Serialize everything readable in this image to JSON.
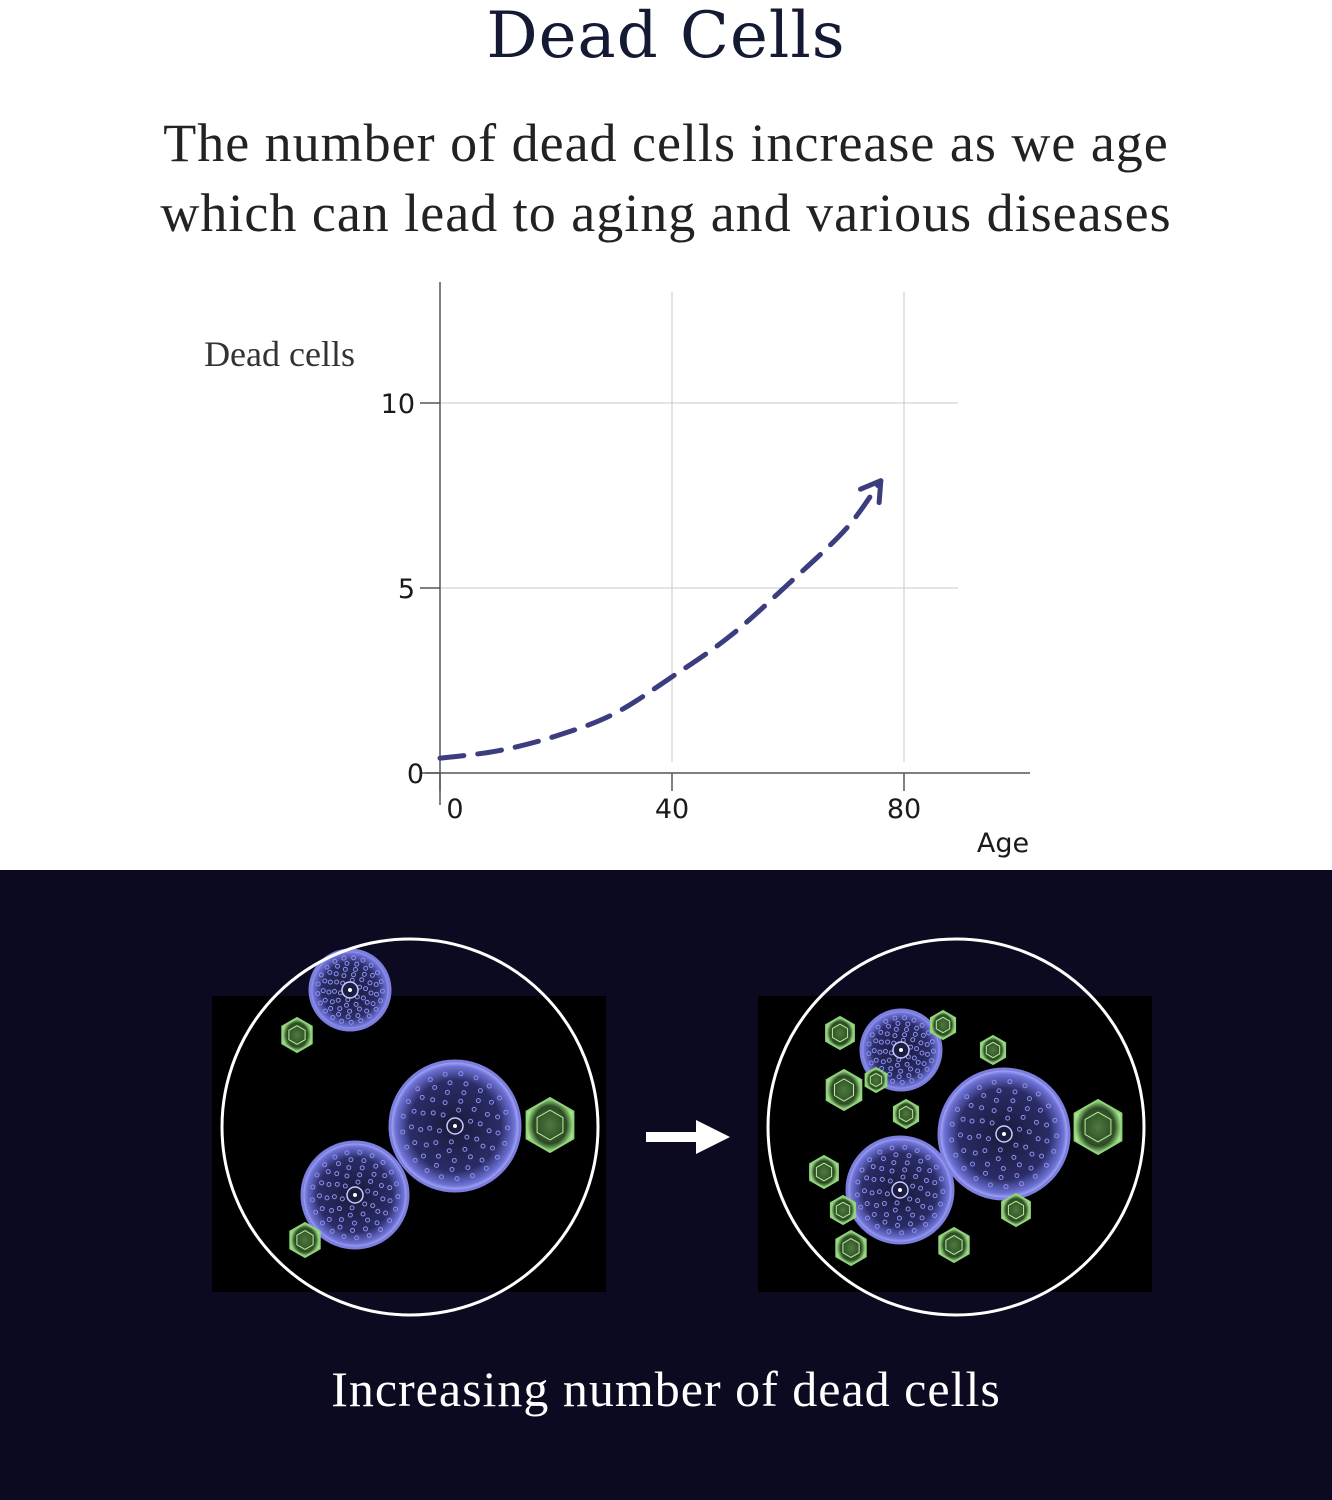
{
  "header": {
    "title": "Dead Cells",
    "subtitle_line1": "The number of dead cells increase as we age",
    "subtitle_line2": "which can lead to aging and various diseases"
  },
  "chart_data": {
    "type": "line",
    "title": "",
    "xlabel": "Age",
    "ylabel": "Dead cells",
    "xlim": [
      0,
      95
    ],
    "ylim": [
      0,
      12
    ],
    "x_ticks": [
      0,
      40,
      80
    ],
    "y_ticks": [
      0,
      5,
      10
    ],
    "grid": true,
    "series": [
      {
        "x": [
          0,
          10,
          20,
          30,
          40,
          50,
          60,
          70,
          76
        ],
        "y": [
          0.4,
          0.6,
          1.0,
          1.6,
          2.6,
          3.7,
          5.1,
          6.6,
          7.9
        ],
        "style": "dashed",
        "arrow": true,
        "color": "#3b3d7e"
      }
    ]
  },
  "illustration": {
    "caption": "Increasing number of dead cells",
    "arrow_icon": "right-arrow-icon",
    "before": {
      "healthy_cells": 3,
      "dead_cells": 3
    },
    "after": {
      "healthy_cells": 3,
      "dead_cells": 12
    },
    "healthy_cell_color": "#7d7fe0",
    "dead_cell_color": "#8fd47a",
    "background_color": "#0b0a20"
  }
}
